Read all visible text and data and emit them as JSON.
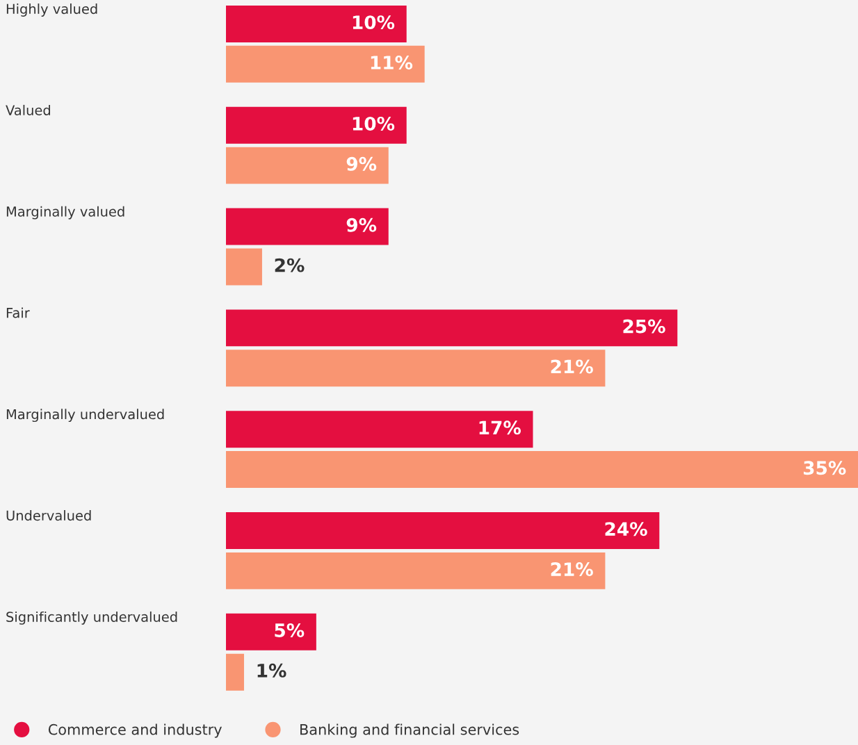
{
  "chart_data": {
    "type": "bar",
    "orientation": "horizontal",
    "categories": [
      "Highly valued",
      "Valued",
      "Marginally valued",
      "Fair",
      "Marginally undervalued",
      "Undervalued",
      "Significantly undervalued"
    ],
    "series": [
      {
        "name": "Commerce and industry",
        "color": "#e40f40",
        "values": [
          10,
          10,
          9,
          25,
          17,
          24,
          5
        ],
        "value_labels": [
          "10%",
          "10%",
          "9%",
          "25%",
          "17%",
          "24%",
          "5%"
        ]
      },
      {
        "name": "Banking and financial services",
        "color": "#f99572",
        "values": [
          11,
          9,
          2,
          21,
          35,
          21,
          1
        ],
        "value_labels": [
          "11%",
          "9%",
          "2%",
          "21%",
          "35%",
          "21%",
          "1%"
        ]
      }
    ],
    "legend": "bottom left",
    "tick_labels": false
  }
}
